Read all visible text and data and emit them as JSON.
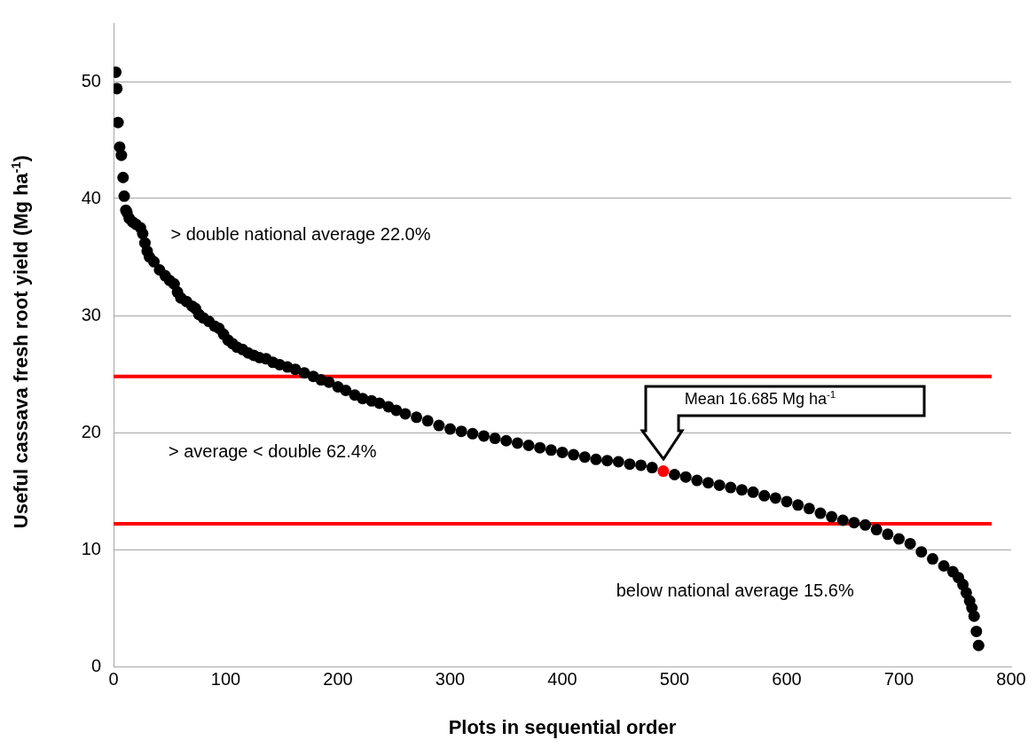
{
  "chart_data": {
    "type": "scatter",
    "xlabel": "Plots in sequential order",
    "ylabel": "Useful cassava fresh root yield (Mg ha$^{-1}$)",
    "xlim": [
      0,
      800
    ],
    "xticks": [
      0,
      100,
      200,
      300,
      400,
      500,
      600,
      700,
      800
    ],
    "ylim": [
      0,
      55
    ],
    "yticks": [
      0,
      10,
      20,
      30,
      40,
      50
    ],
    "grid": "y",
    "legend": false,
    "marker": "circle",
    "series": [
      {
        "color": "#000000",
        "x": [
          2,
          3,
          4,
          5.5,
          7,
          8.5,
          9.5,
          11,
          12,
          14,
          17,
          20,
          24,
          26,
          28,
          30,
          32,
          36,
          41,
          46,
          50,
          54,
          57,
          60,
          65,
          70,
          73,
          76,
          80,
          85,
          90,
          94,
          98,
          102,
          106,
          110,
          115,
          120,
          125,
          130,
          136,
          142,
          148,
          155,
          162,
          170,
          178,
          185,
          192,
          200,
          207,
          215,
          222,
          230,
          237,
          245,
          252,
          260,
          270,
          280,
          290,
          300,
          310,
          320,
          330,
          340,
          350,
          360,
          370,
          380,
          390,
          400,
          410,
          420,
          430,
          440,
          450,
          460,
          470,
          480,
          500,
          510,
          520,
          530,
          540,
          550,
          560,
          570,
          580,
          590,
          600,
          610,
          620,
          630,
          640,
          650,
          660,
          670,
          680,
          690,
          700,
          710,
          720,
          730,
          740,
          748,
          753,
          757,
          760,
          763,
          765,
          767,
          769,
          771
        ],
        "values": [
          50.8,
          49.4,
          46.5,
          44.4,
          43.7,
          41.8,
          40.2,
          39.0,
          38.8,
          38.3,
          38.0,
          37.8,
          37.5,
          37.0,
          36.2,
          35.5,
          35.0,
          34.6,
          33.9,
          33.4,
          33.0,
          32.7,
          32.0,
          31.5,
          31.2,
          30.8,
          30.6,
          30.1,
          29.8,
          29.5,
          29.1,
          28.9,
          28.4,
          27.9,
          27.6,
          27.3,
          27.1,
          26.8,
          26.6,
          26.4,
          26.3,
          26.0,
          25.8,
          25.6,
          25.4,
          25.1,
          24.8,
          24.5,
          24.3,
          23.9,
          23.6,
          23.2,
          22.9,
          22.7,
          22.5,
          22.2,
          21.9,
          21.6,
          21.3,
          21.0,
          20.6,
          20.3,
          20.1,
          19.9,
          19.7,
          19.5,
          19.3,
          19.1,
          18.9,
          18.7,
          18.5,
          18.3,
          18.1,
          17.9,
          17.7,
          17.6,
          17.5,
          17.3,
          17.2,
          17.0,
          16.4,
          16.2,
          15.9,
          15.7,
          15.5,
          15.3,
          15.1,
          14.9,
          14.6,
          14.4,
          14.1,
          13.8,
          13.5,
          13.1,
          12.8,
          12.5,
          12.3,
          12.1,
          11.7,
          11.3,
          10.9,
          10.5,
          9.8,
          9.2,
          8.6,
          8.1,
          7.6,
          7.0,
          6.3,
          5.6,
          5.0,
          4.3,
          3.0,
          1.8
        ]
      },
      {
        "color": "#ff0000",
        "x": [
          490
        ],
        "values": [
          16.7
        ]
      }
    ],
    "ref_lines": [
      {
        "axis": "y",
        "value": 24.8,
        "color": "#ff0000"
      },
      {
        "axis": "y",
        "value": 12.2,
        "color": "#ff0000"
      }
    ],
    "annotations": [
      "> double national average 22.0%",
      "> average < double 62.4%",
      "below national average 15.6%",
      "Mean 16.685 Mg ha$^{-1}$"
    ]
  }
}
